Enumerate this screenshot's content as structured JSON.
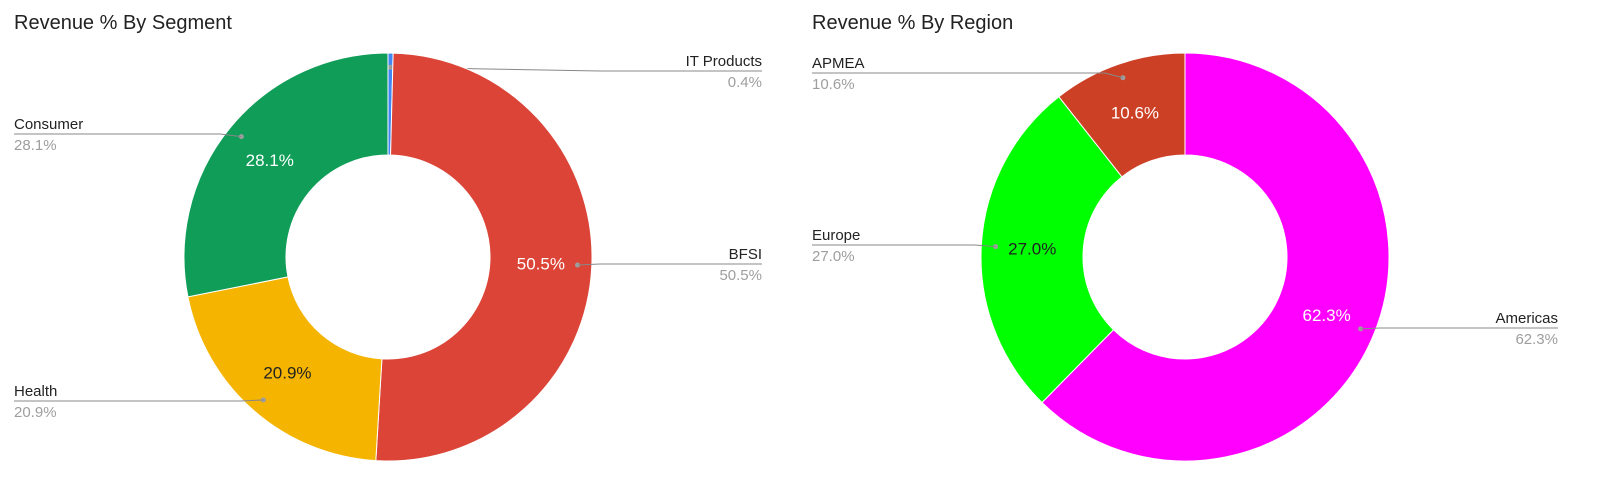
{
  "chart_data": [
    {
      "type": "pie",
      "title": "Revenue % By Segment",
      "slices": [
        {
          "label": "IT Products",
          "value": 0.4,
          "display": "0.4%",
          "color": "#4285f4"
        },
        {
          "label": "BFSI",
          "value": 50.5,
          "display": "50.5%",
          "color": "#db4437"
        },
        {
          "label": "Health",
          "value": 20.9,
          "display": "20.9%",
          "color": "#f4b400"
        },
        {
          "label": "Consumer",
          "value": 28.1,
          "display": "28.1%",
          "color": "#0f9d58"
        }
      ]
    },
    {
      "type": "pie",
      "title": "Revenue % By Region",
      "slices": [
        {
          "label": "Americas",
          "value": 62.3,
          "display": "62.3%",
          "color": "#ff00ff"
        },
        {
          "label": "Europe",
          "value": 27.0,
          "display": "27.0%",
          "color": "#00ff00"
        },
        {
          "label": "APMEA",
          "value": 10.6,
          "display": "10.6%",
          "color": "#cc4125"
        }
      ]
    }
  ]
}
